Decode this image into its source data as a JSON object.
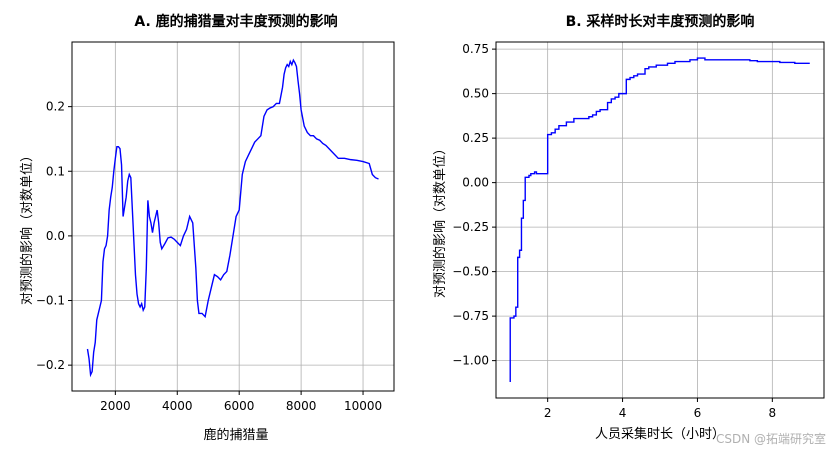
{
  "chart_data": [
    {
      "type": "line",
      "title": "A. 鹿的捕猎量对丰度预测的影响",
      "xlabel": "鹿的捕猎量",
      "ylabel": "对预测的影响（对数单位）",
      "xlim": [
        600,
        11000
      ],
      "ylim": [
        -0.24,
        0.3
      ],
      "xticks": [
        2000,
        4000,
        6000,
        8000,
        10000
      ],
      "yticks": [
        -0.2,
        -0.1,
        0.0,
        0.1,
        0.2
      ],
      "xtick_labels": [
        "2000",
        "4000",
        "6000",
        "8000",
        "10000"
      ],
      "ytick_labels": [
        "−0.2",
        "−0.1",
        "0.0",
        "0.1",
        "0.2"
      ],
      "grid": true,
      "color": "#0000ff",
      "x": [
        1100,
        1150,
        1200,
        1250,
        1300,
        1350,
        1400,
        1450,
        1500,
        1550,
        1600,
        1650,
        1700,
        1750,
        1800,
        1850,
        1900,
        1950,
        2000,
        2050,
        2100,
        2150,
        2200,
        2250,
        2300,
        2350,
        2400,
        2450,
        2500,
        2550,
        2600,
        2650,
        2700,
        2750,
        2800,
        2850,
        2900,
        2950,
        3000,
        3050,
        3100,
        3150,
        3200,
        3250,
        3300,
        3350,
        3400,
        3450,
        3500,
        3600,
        3700,
        3800,
        3900,
        4000,
        4100,
        4200,
        4300,
        4400,
        4500,
        4600,
        4650,
        4700,
        4800,
        4900,
        5000,
        5100,
        5200,
        5300,
        5400,
        5500,
        5600,
        5700,
        5800,
        5900,
        6000,
        6100,
        6200,
        6300,
        6400,
        6500,
        6600,
        6700,
        6800,
        6900,
        7000,
        7100,
        7200,
        7300,
        7400,
        7450,
        7500,
        7550,
        7600,
        7650,
        7700,
        7750,
        7800,
        7850,
        7900,
        7950,
        8000,
        8100,
        8200,
        8300,
        8400,
        8500,
        8600,
        8700,
        8800,
        8900,
        9000,
        9200,
        9400,
        9600,
        9800,
        10000,
        10200,
        10300,
        10400,
        10500
      ],
      "y": [
        -0.175,
        -0.19,
        -0.215,
        -0.21,
        -0.18,
        -0.165,
        -0.13,
        -0.12,
        -0.11,
        -0.1,
        -0.04,
        -0.02,
        -0.015,
        0.0,
        0.04,
        0.06,
        0.075,
        0.1,
        0.12,
        0.138,
        0.138,
        0.135,
        0.11,
        0.03,
        0.045,
        0.06,
        0.085,
        0.095,
        0.09,
        0.04,
        -0.01,
        -0.06,
        -0.09,
        -0.105,
        -0.11,
        -0.105,
        -0.115,
        -0.11,
        -0.05,
        0.055,
        0.03,
        0.02,
        0.005,
        0.02,
        0.03,
        0.04,
        0.02,
        -0.01,
        -0.02,
        -0.012,
        -0.003,
        -0.002,
        -0.005,
        -0.01,
        -0.015,
        0.0,
        0.01,
        0.03,
        0.02,
        -0.05,
        -0.1,
        -0.12,
        -0.12,
        -0.125,
        -0.1,
        -0.08,
        -0.06,
        -0.063,
        -0.068,
        -0.06,
        -0.055,
        -0.03,
        0.0,
        0.03,
        0.04,
        0.095,
        0.115,
        0.125,
        0.135,
        0.145,
        0.15,
        0.155,
        0.185,
        0.195,
        0.198,
        0.2,
        0.205,
        0.205,
        0.23,
        0.25,
        0.26,
        0.265,
        0.262,
        0.27,
        0.265,
        0.272,
        0.268,
        0.262,
        0.24,
        0.22,
        0.195,
        0.17,
        0.16,
        0.155,
        0.155,
        0.15,
        0.148,
        0.143,
        0.14,
        0.135,
        0.13,
        0.12,
        0.12,
        0.118,
        0.117,
        0.115,
        0.112,
        0.095,
        0.09,
        0.088
      ]
    },
    {
      "type": "line",
      "title": "B. 采样时长对丰度预测的影响",
      "xlabel": "人员采集时长（小时）",
      "ylabel": "对预测的影响（对数单位）",
      "xlim": [
        0.62,
        9.38
      ],
      "ylim": [
        -1.21,
        0.79
      ],
      "xticks": [
        2,
        4,
        6,
        8
      ],
      "yticks": [
        -1.0,
        -0.75,
        -0.5,
        -0.25,
        0.0,
        0.25,
        0.5,
        0.75
      ],
      "xtick_labels": [
        "2",
        "4",
        "6",
        "8"
      ],
      "ytick_labels": [
        "−1.00",
        "−0.75",
        "−0.50",
        "−0.25",
        "0.00",
        "0.25",
        "0.50",
        "0.75"
      ],
      "grid": true,
      "color": "#0000ff",
      "x": [
        1.0,
        1.0,
        1.05,
        1.1,
        1.15,
        1.2,
        1.25,
        1.3,
        1.35,
        1.4,
        1.45,
        1.5,
        1.55,
        1.6,
        1.65,
        1.7,
        1.75,
        1.85,
        1.95,
        2.0,
        2.05,
        2.1,
        2.2,
        2.3,
        2.5,
        2.6,
        2.7,
        2.8,
        3.0,
        3.1,
        3.2,
        3.3,
        3.4,
        3.5,
        3.6,
        3.7,
        3.8,
        3.9,
        4.0,
        4.1,
        4.2,
        4.3,
        4.4,
        4.5,
        4.6,
        4.7,
        4.8,
        4.9,
        5.0,
        5.2,
        5.4,
        5.6,
        5.8,
        6.0,
        6.2,
        6.4,
        6.6,
        6.8,
        7.0,
        7.2,
        7.4,
        7.6,
        7.8,
        8.0,
        8.2,
        8.4,
        8.6,
        8.8,
        9.0
      ],
      "y": [
        -1.12,
        -0.76,
        -0.76,
        -0.75,
        -0.7,
        -0.42,
        -0.38,
        -0.2,
        -0.1,
        0.03,
        0.03,
        0.04,
        0.05,
        0.05,
        0.06,
        0.05,
        0.05,
        0.05,
        0.05,
        0.27,
        0.27,
        0.28,
        0.3,
        0.32,
        0.34,
        0.34,
        0.36,
        0.36,
        0.36,
        0.37,
        0.38,
        0.4,
        0.41,
        0.41,
        0.45,
        0.47,
        0.48,
        0.5,
        0.5,
        0.58,
        0.59,
        0.6,
        0.61,
        0.61,
        0.64,
        0.65,
        0.65,
        0.66,
        0.66,
        0.67,
        0.68,
        0.68,
        0.69,
        0.7,
        0.69,
        0.69,
        0.69,
        0.69,
        0.69,
        0.69,
        0.685,
        0.68,
        0.68,
        0.68,
        0.675,
        0.675,
        0.67,
        0.67,
        0.67
      ]
    }
  ],
  "watermark": "CSDN @拓端研究室"
}
